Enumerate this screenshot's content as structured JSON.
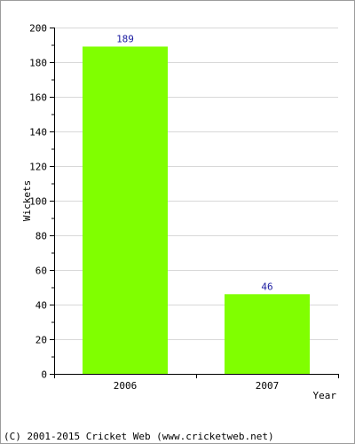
{
  "chart_data": {
    "type": "bar",
    "categories": [
      "2006",
      "2007"
    ],
    "values": [
      189,
      46
    ],
    "title": "",
    "xlabel": "Year",
    "ylabel": "Wickets",
    "ylim": [
      0,
      200
    ],
    "yticks": [
      "0",
      "20",
      "40",
      "60",
      "80",
      "100",
      "120",
      "140",
      "160",
      "180",
      "200"
    ],
    "data_labels": [
      "189",
      "46"
    ],
    "grid": true,
    "bar_color": "#80ff00"
  },
  "footer": "(C) 2001-2015 Cricket Web (www.cricketweb.net)"
}
